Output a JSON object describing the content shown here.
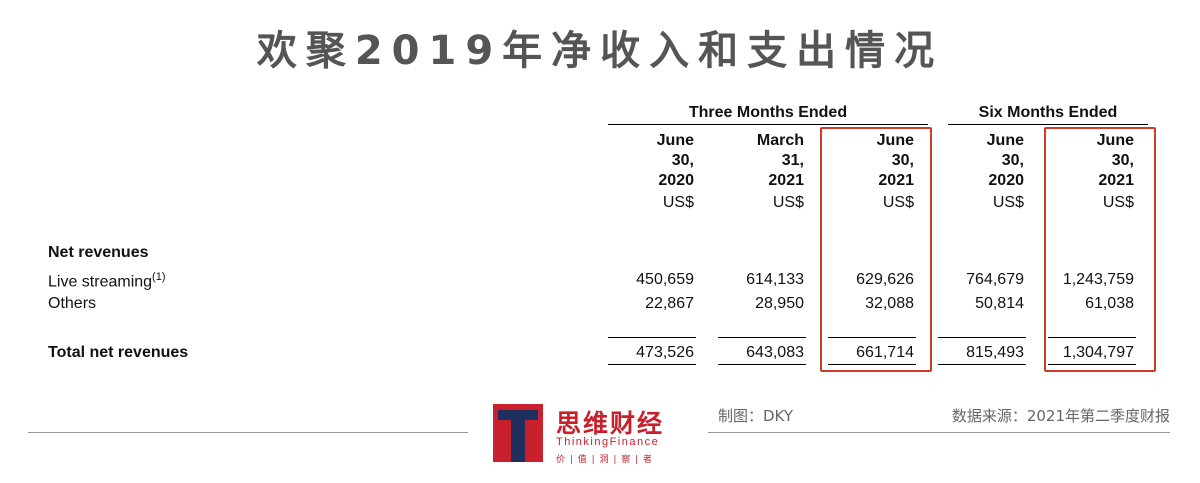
{
  "title": "欢聚2019年净收入和支出情况",
  "table": {
    "group_headers": [
      "Three Months Ended",
      "Six Months Ended"
    ],
    "columns": [
      {
        "l1": "June",
        "l2": "30,",
        "l3": "2020",
        "unit": "US$"
      },
      {
        "l1": "March",
        "l2": "31,",
        "l3": "2021",
        "unit": "US$"
      },
      {
        "l1": "June",
        "l2": "30,",
        "l3": "2021",
        "unit": "US$"
      },
      {
        "l1": "June",
        "l2": "30,",
        "l3": "2020",
        "unit": "US$"
      },
      {
        "l1": "June",
        "l2": "30,",
        "l3": "2021",
        "unit": "US$"
      }
    ],
    "section_label": "Net revenues",
    "rows": [
      {
        "label": "Live streaming",
        "sup": "(1)",
        "values": [
          "450,659",
          "614,133",
          "629,626",
          "764,679",
          "1,243,759"
        ]
      },
      {
        "label": "Others",
        "values": [
          "22,867",
          "28,950",
          "32,088",
          "50,814",
          "61,038"
        ]
      }
    ],
    "total": {
      "label": "Total net revenues",
      "values": [
        "473,526",
        "643,083",
        "661,714",
        "815,493",
        "1,304,797"
      ]
    }
  },
  "highlight_color": "#d23b2a",
  "footer": {
    "brand_cn": "思维财经",
    "brand_en": "ThinkingFinance",
    "brand_sub": "价 | 值 | 洞 | 察 | 者",
    "credit": "制图：DKY",
    "source": "数据来源：2021年第二季度财报"
  }
}
